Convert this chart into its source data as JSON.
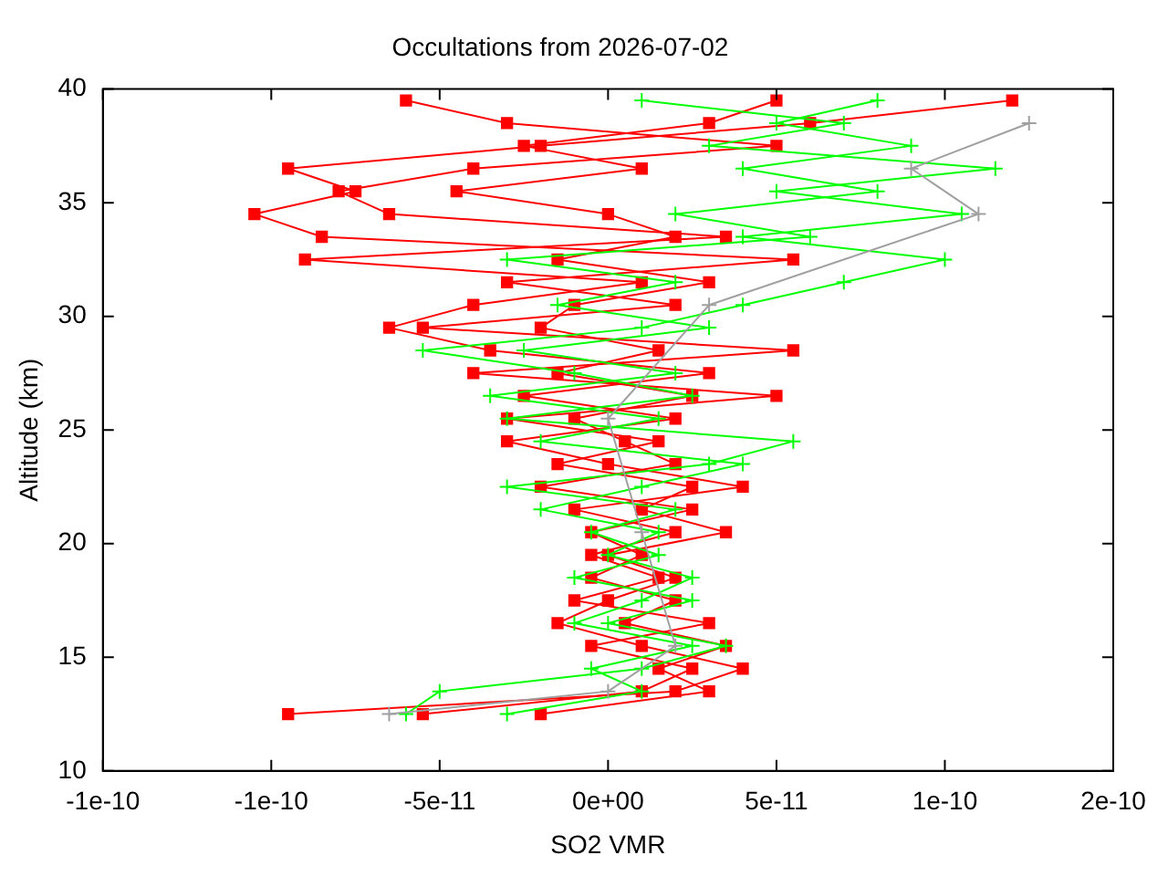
{
  "chart_data": {
    "type": "line",
    "title": "Occultations from 2026-07-02",
    "xlabel": "SO2 VMR",
    "ylabel": "Altitude (km)",
    "xlim": [
      -1.5e-10,
      1.5e-10
    ],
    "xticks": [
      {
        "value": -1.5e-10,
        "label": "-1e-10"
      },
      {
        "value": -1e-10,
        "label": "-1e-10"
      },
      {
        "value": -5e-11,
        "label": "-5e-11"
      },
      {
        "value": 0,
        "label": "0e+00"
      },
      {
        "value": 5e-11,
        "label": "5e-11"
      },
      {
        "value": 1e-10,
        "label": "1e-10"
      },
      {
        "value": 1.5e-10,
        "label": "2e-10"
      }
    ],
    "ylim": [
      10,
      40
    ],
    "yticks": [
      10,
      15,
      20,
      25,
      30,
      35,
      40
    ],
    "legend": false,
    "series": [
      {
        "color": "#a0a0a0",
        "marker": "cross",
        "x": [
          -6.5e-11,
          0,
          2e-11,
          1e-11,
          0,
          3e-11,
          1.1e-10,
          9e-11,
          1.25e-10
        ],
        "values": [
          12.5,
          13.5,
          15.5,
          20.5,
          25.5,
          30.5,
          34.5,
          36.5,
          38.5
        ]
      },
      {
        "color": "#00ff00",
        "marker": "cross",
        "x": [
          -6e-11,
          -5e-11,
          1e-11,
          3.5e-11,
          0,
          2.5e-11,
          -1e-11,
          1.5e-11,
          -5e-12,
          2e-11,
          -3e-11,
          3e-11,
          5.5e-11,
          -3e-11,
          2.5e-11,
          -1e-11,
          -5.5e-11,
          1e-11,
          4e-11,
          7e-11,
          1e-10,
          4e-11,
          1.05e-10,
          5e-11,
          1.15e-10,
          3e-11,
          7e-11,
          1e-11
        ],
        "values": [
          12.5,
          13.5,
          14.5,
          15.5,
          16.5,
          17.5,
          18.5,
          19.5,
          20.5,
          21.5,
          22.5,
          23.5,
          24.5,
          25.5,
          26.5,
          27.5,
          28.5,
          29.5,
          30.5,
          31.5,
          32.5,
          33.5,
          34.5,
          35.5,
          36.5,
          37.5,
          38.5,
          39.5
        ]
      },
      {
        "color": "#00ff00",
        "marker": "cross",
        "x": [
          -3e-11,
          1e-11,
          -5e-12,
          2.5e-11,
          -1e-11,
          1e-11,
          2.5e-11,
          0,
          1.5e-11,
          -2e-11,
          1e-11,
          4e-11,
          -2e-11,
          1.5e-11,
          -3.5e-11,
          2e-11,
          -2.5e-11,
          3e-11,
          -1.5e-11,
          2e-11,
          -3e-11,
          6e-11,
          2e-11,
          8e-11,
          4e-11,
          9e-11,
          5e-11,
          8e-11
        ],
        "values": [
          12.5,
          13.5,
          14.5,
          15.5,
          16.5,
          17.5,
          18.5,
          19.5,
          20.5,
          21.5,
          22.5,
          23.5,
          24.5,
          25.5,
          26.5,
          27.5,
          28.5,
          29.5,
          30.5,
          31.5,
          32.5,
          33.5,
          34.5,
          35.5,
          36.5,
          37.5,
          38.5,
          39.5
        ]
      },
      {
        "color": "#ff0000",
        "marker": "square",
        "x": [
          -9.5e-11,
          2e-11,
          4e-11,
          1e-11,
          -1.5e-11,
          0,
          2e-11,
          0,
          3.5e-11,
          1e-11,
          2.5e-11,
          -1.5e-11,
          1.5e-11,
          -3e-11,
          5e-11,
          -4e-11,
          5.5e-11,
          -5.5e-11,
          2e-11,
          -3e-11,
          5.5e-11,
          -8.5e-11,
          -1.05e-10,
          -7.5e-11,
          -9.5e-11,
          -2e-11,
          6e-11,
          1.2e-10
        ],
        "values": [
          12.5,
          13.5,
          14.5,
          15.5,
          16.5,
          17.5,
          18.5,
          19.5,
          20.5,
          21.5,
          22.5,
          23.5,
          24.5,
          25.5,
          26.5,
          27.5,
          28.5,
          29.5,
          30.5,
          31.5,
          32.5,
          33.5,
          34.5,
          35.5,
          36.5,
          37.5,
          38.5,
          39.5
        ]
      },
      {
        "color": "#ff0000",
        "marker": "square",
        "x": [
          -5.5e-11,
          1e-11,
          2.5e-11,
          -5e-12,
          3e-11,
          -1e-11,
          1.5e-11,
          -5e-12,
          2e-11,
          -1e-11,
          4e-11,
          0,
          -3e-11,
          2e-11,
          -2.5e-11,
          3e-11,
          -3.5e-11,
          -6.5e-11,
          -4e-11,
          1e-11,
          -9e-11,
          3.5e-11,
          -6.5e-11,
          -8e-11,
          -4e-11,
          5e-11,
          -3e-11,
          -6e-11
        ],
        "values": [
          12.5,
          13.5,
          14.5,
          15.5,
          16.5,
          17.5,
          18.5,
          19.5,
          20.5,
          21.5,
          22.5,
          23.5,
          24.5,
          25.5,
          26.5,
          27.5,
          28.5,
          29.5,
          30.5,
          31.5,
          32.5,
          33.5,
          34.5,
          35.5,
          36.5,
          37.5,
          38.5,
          39.5
        ]
      },
      {
        "color": "#ff0000",
        "marker": "square",
        "x": [
          -2e-11,
          3e-11,
          1.5e-11,
          3.5e-11,
          5e-12,
          2e-11,
          -5e-12,
          1e-11,
          -5e-12,
          2.5e-11,
          -2e-11,
          2e-11,
          5e-12,
          -1e-11,
          2.5e-11,
          -1.5e-11,
          1.5e-11,
          -2e-11,
          -1e-11,
          3e-11,
          -1.5e-11,
          2e-11,
          0,
          -4.5e-11,
          1e-11,
          -2.5e-11,
          3e-11,
          5e-11
        ],
        "values": [
          12.5,
          13.5,
          14.5,
          15.5,
          16.5,
          17.5,
          18.5,
          19.5,
          20.5,
          21.5,
          22.5,
          23.5,
          24.5,
          25.5,
          26.5,
          27.5,
          28.5,
          29.5,
          30.5,
          31.5,
          32.5,
          33.5,
          34.5,
          35.5,
          36.5,
          37.5,
          38.5,
          39.5
        ]
      }
    ]
  }
}
